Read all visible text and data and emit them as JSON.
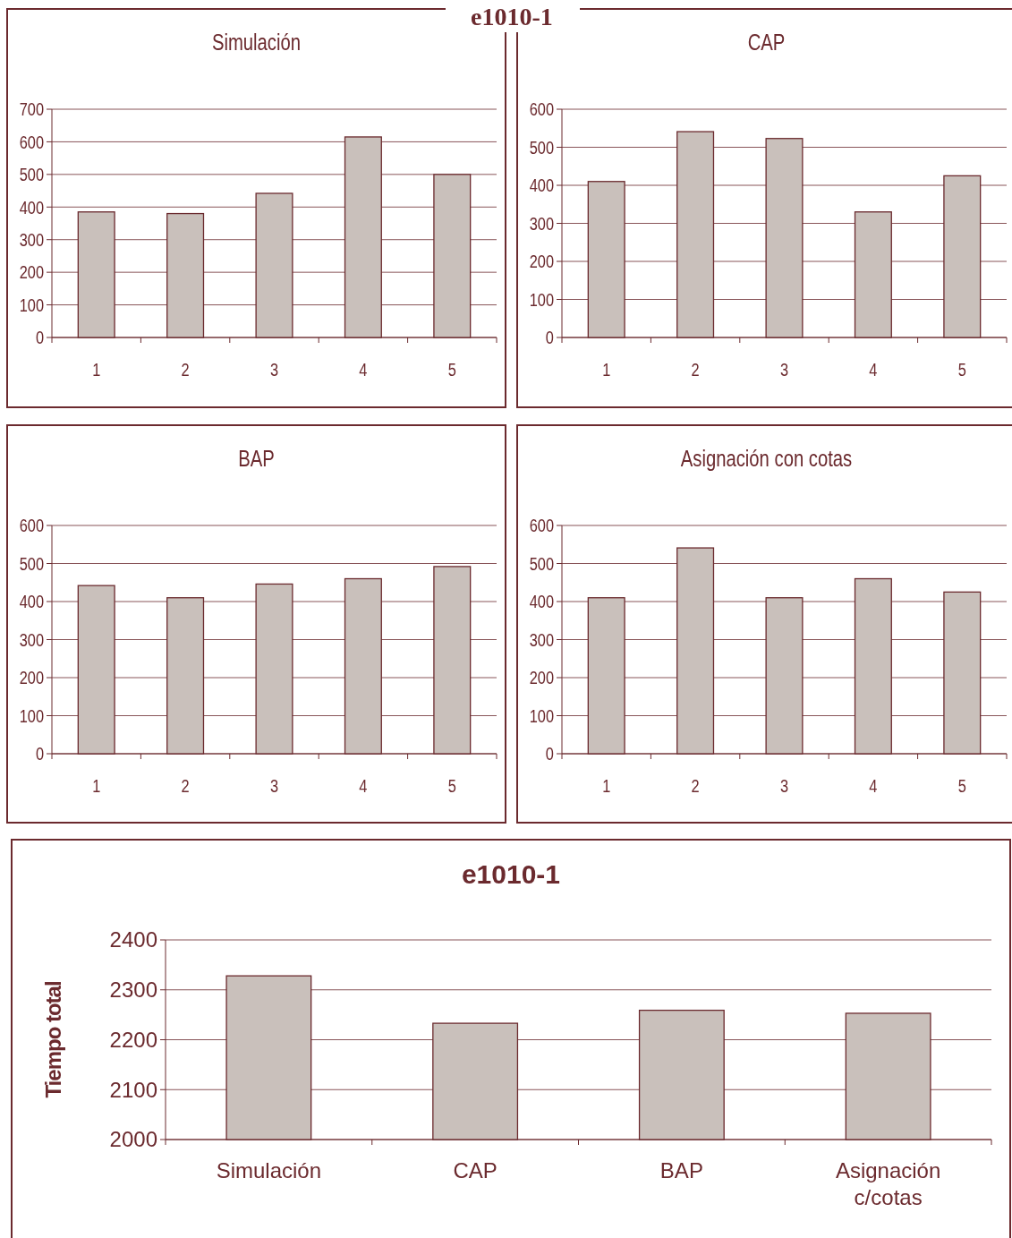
{
  "chart_data": [
    {
      "type": "bar",
      "title": "Simulación",
      "annotations": [
        "e1010-1"
      ],
      "categories": [
        "1",
        "2",
        "3",
        "4",
        "5"
      ],
      "values": [
        385,
        380,
        442,
        615,
        500
      ],
      "color": "#c9c0bb",
      "ylim": [
        0,
        700
      ],
      "yticks": [
        0,
        100,
        200,
        300,
        400,
        500,
        600,
        700
      ],
      "grid": "y"
    },
    {
      "type": "bar",
      "title": "CAP",
      "categories": [
        "1",
        "2",
        "3",
        "4",
        "5"
      ],
      "values": [
        410,
        541,
        523,
        330,
        425
      ],
      "color": "#c9c0bb",
      "ylim": [
        0,
        600
      ],
      "yticks": [
        0,
        100,
        200,
        300,
        400,
        500,
        600
      ],
      "grid": "y"
    },
    {
      "type": "bar",
      "title": "BAP",
      "categories": [
        "1",
        "2",
        "3",
        "4",
        "5"
      ],
      "values": [
        442,
        410,
        446,
        460,
        492
      ],
      "color": "#c9c0bb",
      "ylim": [
        0,
        600
      ],
      "yticks": [
        0,
        100,
        200,
        300,
        400,
        500,
        600
      ],
      "grid": "y"
    },
    {
      "type": "bar",
      "title": "Asignación con cotas",
      "categories": [
        "1",
        "2",
        "3",
        "4",
        "5"
      ],
      "values": [
        410,
        541,
        410,
        460,
        425
      ],
      "color": "#c9c0bb",
      "ylim": [
        0,
        600
      ],
      "yticks": [
        0,
        100,
        200,
        300,
        400,
        500,
        600
      ],
      "grid": "y"
    },
    {
      "type": "bar",
      "title": "e1010-1",
      "ylabel": "Tiempo total",
      "categories": [
        "Simulación",
        "CAP",
        "BAP",
        "Asignación c/cotas"
      ],
      "values": [
        2328,
        2233,
        2259,
        2253
      ],
      "color": "#c9c0bb",
      "ylim": [
        2000,
        2400
      ],
      "yticks": [
        2000,
        2100,
        2200,
        2300,
        2400
      ],
      "grid": "y"
    }
  ]
}
